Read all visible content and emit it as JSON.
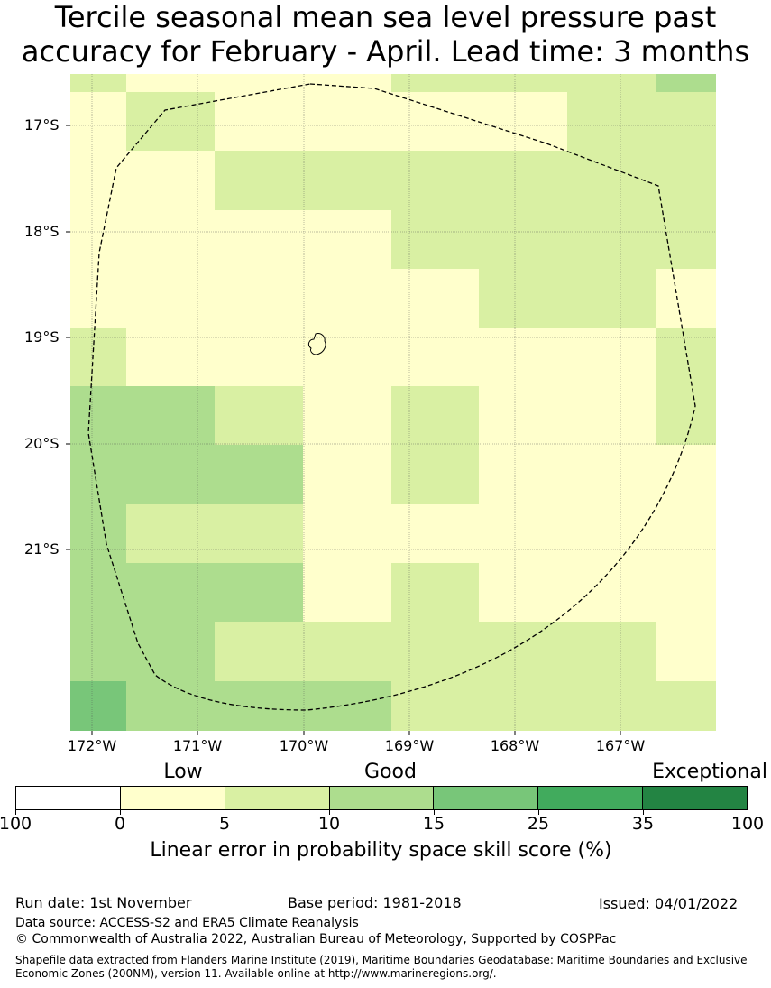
{
  "title": {
    "line1": "Tercile seasonal mean sea level pressure past",
    "line2": "accuracy for February - April. Lead time: 3 months"
  },
  "map": {
    "lat_labels": [
      "17°S",
      "18°S",
      "19°S",
      "20°S",
      "21°S"
    ],
    "lon_labels": [
      "172°W",
      "171°W",
      "170°W",
      "169°W",
      "168°W",
      "167°W"
    ],
    "grid_levels": [
      [
        1,
        0,
        0,
        0,
        1,
        1,
        1,
        2
      ],
      [
        0,
        1,
        0,
        0,
        0,
        0,
        1,
        1
      ],
      [
        0,
        0,
        1,
        1,
        1,
        1,
        1,
        1
      ],
      [
        0,
        0,
        0,
        0,
        1,
        1,
        1,
        1
      ],
      [
        0,
        0,
        0,
        0,
        0,
        1,
        1,
        0
      ],
      [
        1,
        0,
        0,
        0,
        0,
        0,
        0,
        1
      ],
      [
        2,
        2,
        1,
        0,
        1,
        0,
        0,
        1
      ],
      [
        2,
        2,
        2,
        0,
        1,
        0,
        0,
        0
      ],
      [
        2,
        1,
        1,
        0,
        0,
        0,
        0,
        0
      ],
      [
        2,
        2,
        2,
        0,
        1,
        0,
        0,
        0
      ],
      [
        2,
        2,
        1,
        1,
        1,
        1,
        1,
        0
      ],
      [
        3,
        2,
        2,
        2,
        1,
        1,
        1,
        1
      ]
    ],
    "boundary": "EEZ dashed"
  },
  "legend": {
    "categories": [
      "Low",
      "Good",
      "Exceptional"
    ],
    "colors": [
      "#ffffff",
      "#ffffcc",
      "#d9f0a3",
      "#addd8e",
      "#78c679",
      "#41ab5d",
      "#238443"
    ],
    "ticks": [
      "100",
      "0",
      "5",
      "10",
      "15",
      "25",
      "35",
      "100"
    ],
    "title": "Linear error in probability space skill score (%)"
  },
  "footer": {
    "run_date": "Run date: 1st November",
    "base_period": "Base period: 1981-2018",
    "issued": "Issued: 04/01/2022",
    "data_source": "Data source: ACCESS-S2 and ERA5 Climate Reanalysis",
    "copyright": "© Commonwealth of Australia 2022, Australian Bureau of Meteorology, Supported by COSPPac",
    "shapefile_note": "Shapefile data extracted from Flanders Marine Institute (2019), Maritime Boundaries Geodatabase: Maritime Boundaries and Exclusive Economic Zones (200NM), version 11. Available online at http://www.marineregions.org/."
  }
}
